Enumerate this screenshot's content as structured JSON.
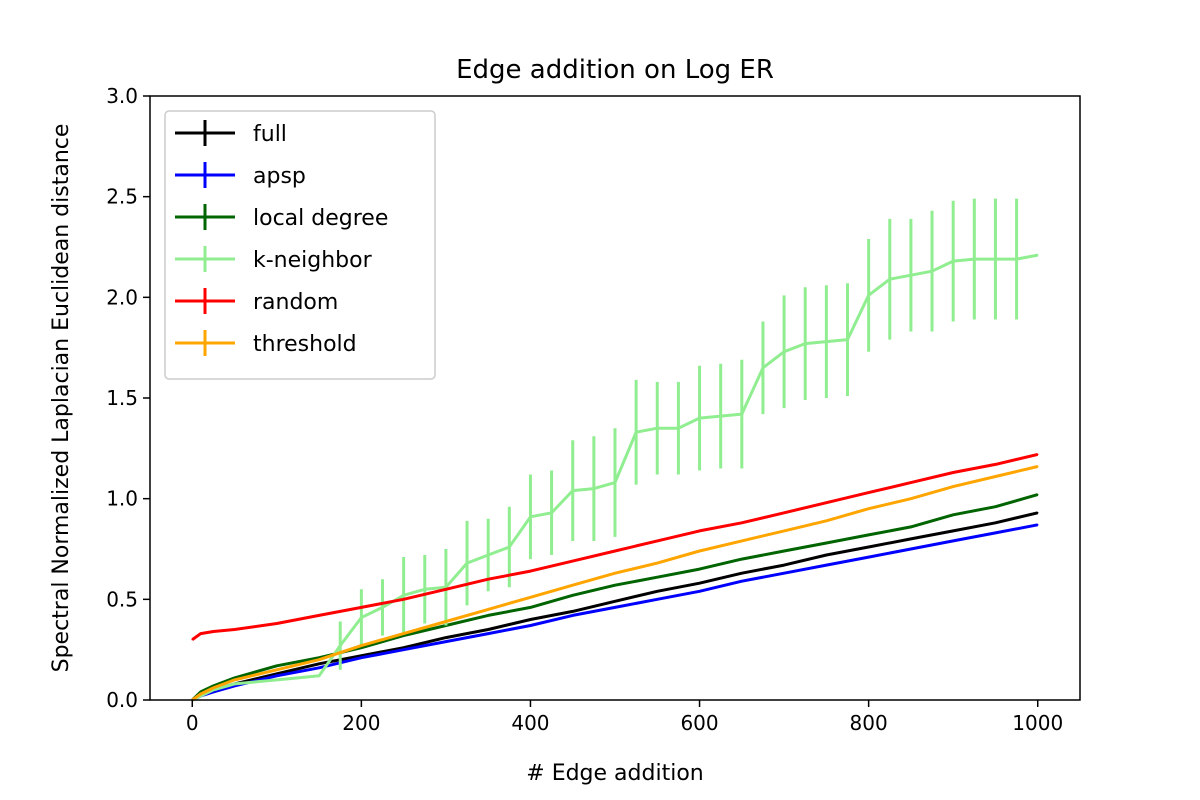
{
  "chart_data": {
    "type": "line",
    "title": "Edge addition on Log ER",
    "xlabel": "# Edge addition",
    "ylabel": "Spectral Normalized Laplacian Euclidean distance",
    "xlim": [
      -50,
      1050
    ],
    "ylim": [
      0,
      3.0
    ],
    "x_ticks": [
      0,
      200,
      400,
      600,
      800,
      1000
    ],
    "y_ticks": [
      0.0,
      0.5,
      1.0,
      1.5,
      2.0,
      2.5,
      3.0
    ],
    "x_tick_labels": [
      "0",
      "200",
      "400",
      "600",
      "800",
      "1000"
    ],
    "y_tick_labels": [
      "0.0",
      "0.5",
      "1.0",
      "1.5",
      "2.0",
      "2.5",
      "3.0"
    ],
    "grid": false,
    "legend_position": "top-left",
    "series": [
      {
        "name": "full",
        "color": "#000000",
        "x": [
          0,
          10,
          25,
          50,
          100,
          150,
          200,
          250,
          300,
          350,
          400,
          450,
          500,
          550,
          600,
          650,
          700,
          750,
          800,
          850,
          900,
          950,
          1000
        ],
        "y": [
          0.0,
          0.03,
          0.05,
          0.08,
          0.13,
          0.18,
          0.22,
          0.26,
          0.31,
          0.35,
          0.4,
          0.44,
          0.49,
          0.54,
          0.58,
          0.63,
          0.67,
          0.72,
          0.76,
          0.8,
          0.84,
          0.88,
          0.93
        ]
      },
      {
        "name": "apsp",
        "color": "#0000ff",
        "x": [
          0,
          10,
          25,
          50,
          100,
          150,
          200,
          250,
          300,
          350,
          400,
          450,
          500,
          550,
          600,
          650,
          700,
          750,
          800,
          850,
          900,
          950,
          1000
        ],
        "y": [
          0.0,
          0.02,
          0.04,
          0.07,
          0.12,
          0.16,
          0.21,
          0.25,
          0.29,
          0.33,
          0.37,
          0.42,
          0.46,
          0.5,
          0.54,
          0.59,
          0.63,
          0.67,
          0.71,
          0.75,
          0.79,
          0.83,
          0.87
        ]
      },
      {
        "name": "local degree",
        "color": "#006400",
        "x": [
          0,
          10,
          25,
          50,
          100,
          150,
          200,
          250,
          300,
          350,
          400,
          450,
          500,
          550,
          600,
          650,
          700,
          750,
          800,
          850,
          900,
          950,
          1000
        ],
        "y": [
          0.0,
          0.04,
          0.07,
          0.11,
          0.17,
          0.21,
          0.26,
          0.32,
          0.37,
          0.42,
          0.46,
          0.52,
          0.57,
          0.61,
          0.65,
          0.7,
          0.74,
          0.78,
          0.82,
          0.86,
          0.92,
          0.96,
          1.02
        ]
      },
      {
        "name": "k-neighbor",
        "color": "#90ee90",
        "x": [
          0,
          25,
          50,
          75,
          100,
          125,
          150,
          175,
          200,
          225,
          250,
          275,
          300,
          325,
          350,
          375,
          400,
          425,
          450,
          475,
          500,
          525,
          550,
          575,
          600,
          625,
          650,
          675,
          700,
          725,
          750,
          775,
          800,
          825,
          850,
          875,
          900,
          925,
          950,
          975,
          1000
        ],
        "y": [
          0.0,
          0.05,
          0.08,
          0.09,
          0.1,
          0.11,
          0.12,
          0.27,
          0.41,
          0.46,
          0.52,
          0.55,
          0.56,
          0.68,
          0.72,
          0.76,
          0.91,
          0.93,
          1.04,
          1.05,
          1.08,
          1.33,
          1.35,
          1.35,
          1.4,
          1.41,
          1.42,
          1.65,
          1.73,
          1.77,
          1.78,
          1.79,
          2.01,
          2.09,
          2.11,
          2.13,
          2.18,
          2.19,
          2.19,
          2.19,
          2.21
        ],
        "errors": [
          0.0,
          0.0,
          0.0,
          0.0,
          0.0,
          0.0,
          0.0,
          0.12,
          0.14,
          0.14,
          0.19,
          0.17,
          0.19,
          0.21,
          0.18,
          0.2,
          0.21,
          0.21,
          0.25,
          0.26,
          0.27,
          0.26,
          0.23,
          0.23,
          0.26,
          0.26,
          0.27,
          0.23,
          0.28,
          0.28,
          0.28,
          0.28,
          0.28,
          0.3,
          0.28,
          0.3,
          0.3,
          0.3,
          0.3,
          0.3,
          0.0
        ]
      },
      {
        "name": "random",
        "color": "#ff0000",
        "x": [
          0,
          10,
          25,
          50,
          100,
          150,
          200,
          250,
          300,
          350,
          400,
          450,
          500,
          550,
          600,
          650,
          700,
          750,
          800,
          850,
          900,
          950,
          1000
        ],
        "y": [
          0.3,
          0.33,
          0.34,
          0.35,
          0.38,
          0.42,
          0.46,
          0.5,
          0.55,
          0.6,
          0.64,
          0.69,
          0.74,
          0.79,
          0.84,
          0.88,
          0.93,
          0.98,
          1.03,
          1.08,
          1.13,
          1.17,
          1.22
        ]
      },
      {
        "name": "threshold",
        "color": "#ffa500",
        "x": [
          0,
          10,
          25,
          50,
          100,
          150,
          200,
          250,
          300,
          350,
          400,
          450,
          500,
          550,
          600,
          650,
          700,
          750,
          800,
          850,
          900,
          950,
          1000
        ],
        "y": [
          0.0,
          0.03,
          0.06,
          0.1,
          0.15,
          0.2,
          0.27,
          0.33,
          0.39,
          0.45,
          0.51,
          0.57,
          0.63,
          0.68,
          0.74,
          0.79,
          0.84,
          0.89,
          0.95,
          1.0,
          1.06,
          1.11,
          1.16
        ]
      }
    ]
  }
}
